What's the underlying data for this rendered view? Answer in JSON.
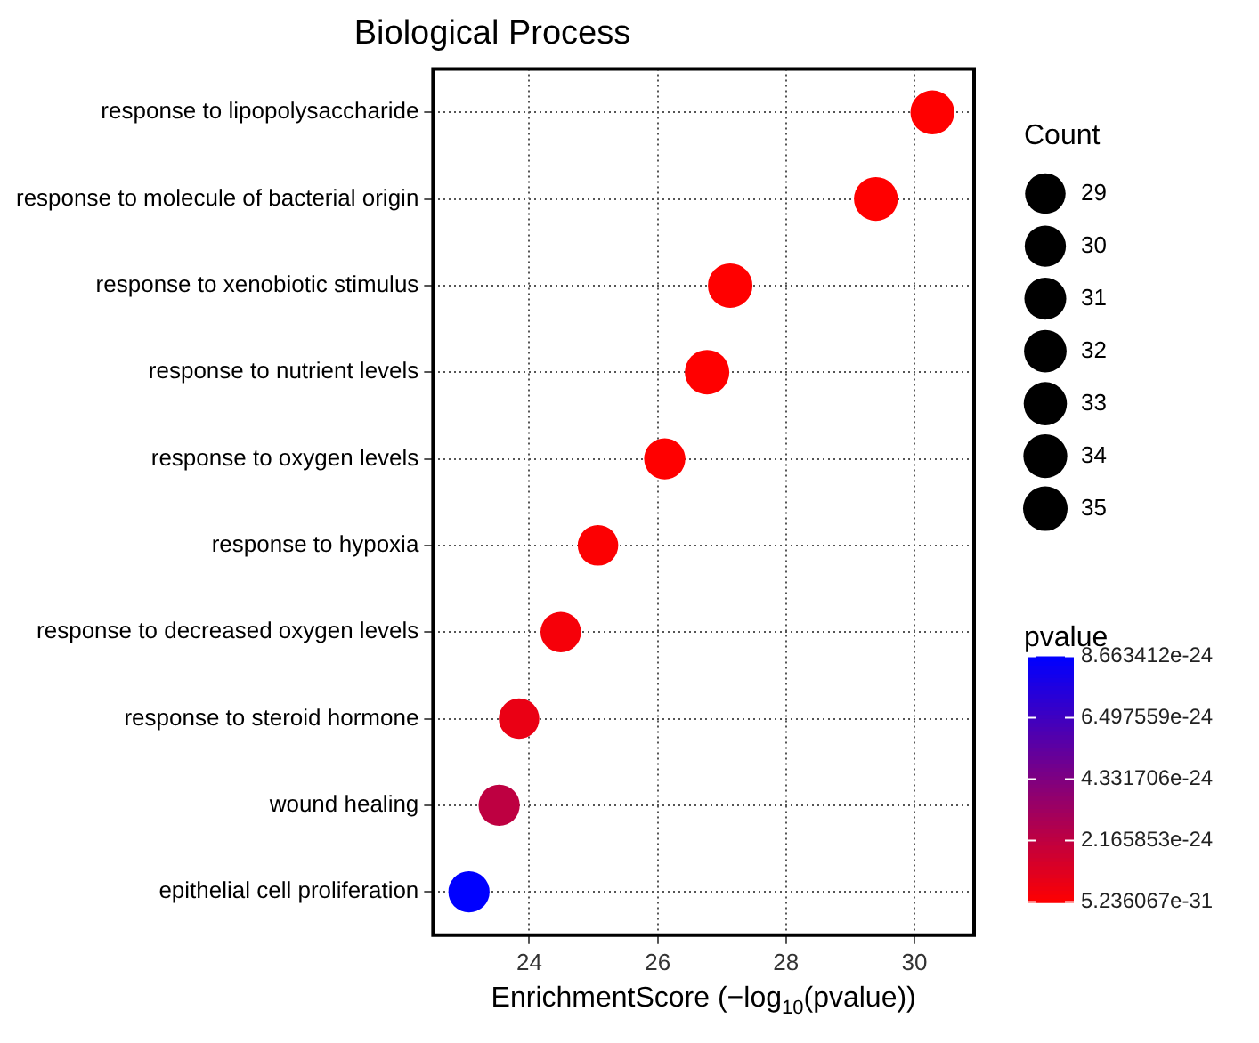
{
  "chart_data": {
    "type": "bubble",
    "title": "Biological Process",
    "xlabel": "EnrichmentScore (−log$_{10}$(pvalue))",
    "legend_title": "Count",
    "clabel": "pvalue",
    "categories": [
      "response to lipopolysaccharide",
      "response to molecule of bacterial origin",
      "response to xenobiotic stimulus",
      "response to nutrient levels",
      "response to oxygen levels",
      "response to hypoxia",
      "response to decreased oxygen levels",
      "response to steroid hormone",
      "wound healing",
      "epithelial cell proliferation"
    ],
    "values": [
      30.28,
      29.4,
      27.13,
      26.77,
      26.11,
      25.07,
      24.49,
      23.84,
      23.53,
      23.06
    ],
    "sizes": [
      34,
      34,
      35,
      35,
      30,
      29,
      29,
      29,
      30,
      30
    ],
    "cvalues": [
      5.236067e-31,
      4e-30,
      7.4e-28,
      1.7e-27,
      7.8e-27,
      8.5e-26,
      3.2e-25,
      7e-25,
      2.2e-24,
      8.663412e-24
    ],
    "colors": [
      "#ff0000",
      "#ff0000",
      "#ff0000",
      "#ff0000",
      "#ff0000",
      "#fc0002",
      "#f60009",
      "#ea0014",
      "#be0041",
      "#0000ff"
    ],
    "size_legend": [
      29,
      30,
      31,
      32,
      33,
      34,
      35
    ],
    "clim": [
      5.236067e-31,
      8.663412e-24
    ],
    "cticks": [
      5.236067e-31,
      2.165853e-24,
      4.331706e-24,
      6.497559e-24,
      8.663412e-24
    ],
    "orientation": "horizontal",
    "xlim": [
      22.5,
      30.93
    ],
    "xticks": [
      24,
      26,
      28,
      30
    ],
    "grid": true
  }
}
